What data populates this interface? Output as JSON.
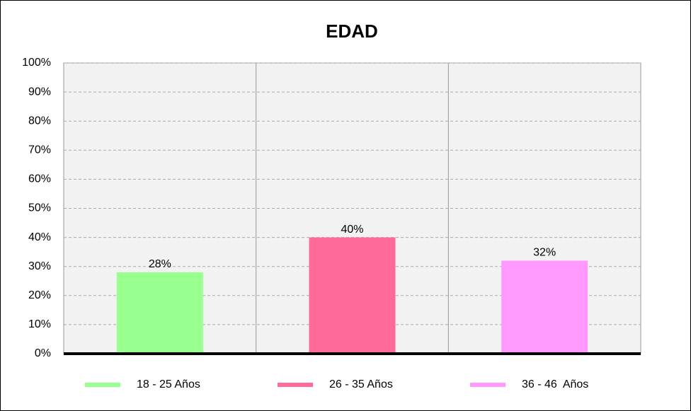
{
  "chart_data": {
    "type": "bar",
    "title": "EDAD",
    "categories": [
      "18 - 25 Años",
      "26 - 35 Años",
      "36 - 46  Años"
    ],
    "values": [
      28,
      40,
      32
    ],
    "value_labels": [
      "28%",
      "40%",
      "32%"
    ],
    "colors": [
      "#99ff8f",
      "#ff6b99",
      "#ff99ff"
    ],
    "ylim": [
      0,
      100
    ],
    "yticks": [
      {
        "value": 0,
        "label": "0%"
      },
      {
        "value": 10,
        "label": "10%"
      },
      {
        "value": 20,
        "label": "20%"
      },
      {
        "value": 30,
        "label": "30%"
      },
      {
        "value": 40,
        "label": "40%"
      },
      {
        "value": 50,
        "label": "50%"
      },
      {
        "value": 60,
        "label": "60%"
      },
      {
        "value": 70,
        "label": "70%"
      },
      {
        "value": 80,
        "label": "80%"
      },
      {
        "value": 90,
        "label": "90%"
      },
      {
        "value": 100,
        "label": "100%"
      }
    ],
    "grid": true
  }
}
